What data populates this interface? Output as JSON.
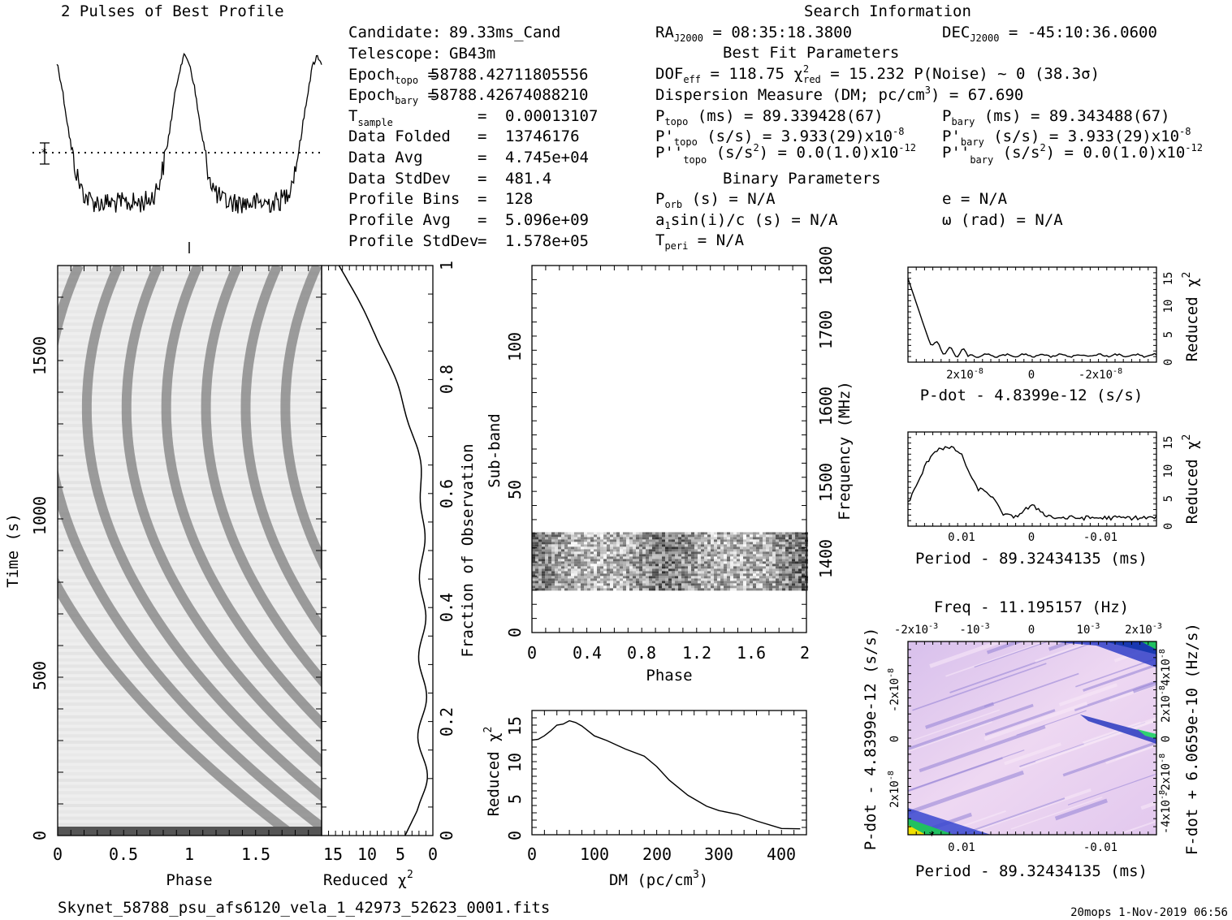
{
  "title_profile": "2 Pulses of Best Profile",
  "title_search": "Search Information",
  "filename": "Skynet_58788_psu_afs6120_vela_1_42973_52623_0001.fits",
  "footer_right": "20mops  1-Nov-2019 06:56",
  "info": {
    "candidate_label": "Candidate:",
    "candidate": "89.33ms_Cand",
    "telescope_label": "Telescope:",
    "telescope": "GB43m",
    "epoch_topo": "58788.42711805556",
    "epoch_bary": "58788.42674088210",
    "tsample": "0.00013107",
    "data_folded_label": "Data Folded",
    "data_folded": "13746176",
    "data_avg_label": "Data Avg",
    "data_avg": "4.745e+04",
    "data_stddev_label": "Data StdDev",
    "data_stddev": "481.4",
    "profile_bins_label": "Profile Bins",
    "profile_bins": "128",
    "profile_avg_label": "Profile Avg",
    "profile_avg": "5.096e+09",
    "profile_stddev_label": "Profile StdDev",
    "profile_stddev": "1.578e+05",
    "ra": "08:35:18.3800",
    "dec": "-45:10:36.0600",
    "best_fit_label": "Best Fit Parameters",
    "dof_eff": "118.75",
    "chi2_red": "15.232",
    "p_noise": "0",
    "sigma": "(38.3σ)",
    "dm_label": "Dispersion Measure (DM; pc/cm",
    "dm": "67.690",
    "p_topo": "89.339428(67)",
    "p_bary": "89.343488(67)",
    "pd_topo": "3.933(29)x10",
    "pd_bary": "3.933(29)x10",
    "pdd_topo": "0.0(1.0)x10",
    "pdd_bary": "0.0(1.0)x10",
    "exp_m8": "-8",
    "exp_m12": "-12",
    "binary_label": "Binary Parameters",
    "p_orb": "N/A",
    "a1sini": "N/A",
    "t_peri": "N/A",
    "e": "N/A",
    "omega": "N/A"
  },
  "chart_data": [
    {
      "name": "profile",
      "type": "line",
      "title": "2 Pulses of Best Profile",
      "x": "phase 0-2, 256 points",
      "description_of_shape": "two broad pulses peaking near phase 0.97 and 1.97, trough near 0.5 and 1.5",
      "peaks": [
        {
          "phase": 0.97
        },
        {
          "phase": 1.97
        }
      ]
    },
    {
      "name": "time-phase",
      "type": "heatmap",
      "xlabel": "Phase",
      "ylabel": "Time (s)",
      "xticks": [
        "0",
        "0.5",
        "1",
        "1.5"
      ],
      "yticks": [
        "0",
        "500",
        "1000",
        "1500"
      ],
      "xlim": [
        0,
        2
      ],
      "ylim": [
        0,
        1780
      ],
      "tracks": "drifting pulse tracks; phase drifts with time (period mismatch)"
    },
    {
      "name": "chi2-vs-time",
      "type": "line",
      "xlabel": "Reduced χ",
      "ylabel": "Fraction of Observation",
      "xticks": [
        "15",
        "10",
        "5",
        "0"
      ],
      "yticks": [
        "0",
        "0.2",
        "0.4",
        "0.6",
        "0.8",
        "1"
      ],
      "xlim": [
        16,
        0
      ],
      "ylim": [
        0,
        1
      ]
    },
    {
      "name": "subband-phase",
      "type": "heatmap",
      "xlabel": "Phase",
      "ylabel": "Sub-band",
      "ylabel2": "Frequency (MHz)",
      "xticks": [
        "0",
        "0.4",
        "0.8",
        "1.2",
        "1.6",
        "2"
      ],
      "yticks": [
        "0",
        "50",
        "100"
      ],
      "freqticks": [
        "1400",
        "1500",
        "1600",
        "1700",
        "1800"
      ],
      "xlim": [
        0,
        2
      ],
      "ylim": [
        0,
        128
      ],
      "band": [
        15,
        35
      ]
    },
    {
      "name": "dm-chi2",
      "type": "line",
      "xlabel": "DM (pc/cm",
      "ylabel": "Reduced χ",
      "xticks": [
        "0",
        "100",
        "200",
        "300",
        "400"
      ],
      "yticks": [
        "0",
        "5",
        "10",
        "15"
      ],
      "xlim": [
        0,
        440
      ],
      "ylim": [
        0,
        17
      ],
      "x": [
        0,
        10,
        20,
        30,
        40,
        50,
        60,
        70,
        80,
        100,
        120,
        150,
        180,
        200,
        220,
        250,
        280,
        300,
        330,
        360,
        400,
        430
      ],
      "y": [
        13,
        13.2,
        13.6,
        14.2,
        14.8,
        15.3,
        15.6,
        15.3,
        14.8,
        13.7,
        12.8,
        11.7,
        10.6,
        9.2,
        7.5,
        5.4,
        4,
        3.4,
        2.6,
        1.9,
        1,
        0.8
      ]
    },
    {
      "name": "pdot-chi2",
      "type": "line",
      "xlabel": "P-dot - 4.8399e-12 (s/s)",
      "ylabel": "Reduced χ",
      "xticks": [
        "2x10",
        "0",
        "-2x10"
      ],
      "yticks": [
        "0",
        "5",
        "10",
        "15"
      ],
      "ylim": [
        0,
        17
      ]
    },
    {
      "name": "period-chi2",
      "type": "line",
      "xlabel": "Period - 89.32434135 (ms)",
      "ylabel": "Reduced χ",
      "xticks": [
        "0.01",
        "0",
        "-0.01"
      ],
      "yticks": [
        "0",
        "5",
        "10",
        "15"
      ],
      "ylim": [
        0,
        17
      ]
    },
    {
      "name": "p-pdot",
      "type": "heatmap",
      "title": "Freq - 11.195157 (Hz)",
      "xlabel": "Period - 89.32434135 (ms)",
      "ylabel": "P-dot - 4.8399e-12 (s/s)",
      "ylabel2": "F-dot + 6.0659e-10 (Hz/s)",
      "xticks": [
        "0.01",
        "-0.01"
      ],
      "topticks": [
        "-2x10",
        "-10",
        "0",
        "10",
        "2x10"
      ],
      "yticks": [
        "-2x10",
        "0",
        "2x10"
      ],
      "rticks": [
        "4x10",
        "2x10",
        "0",
        "-2x10",
        "-4x10"
      ]
    }
  ],
  "colors": {
    "heat_bg": "#e8c8ee",
    "heat_blue": "#2030c0",
    "heat_green": "#20c060",
    "heat_yellow": "#f0e000"
  }
}
